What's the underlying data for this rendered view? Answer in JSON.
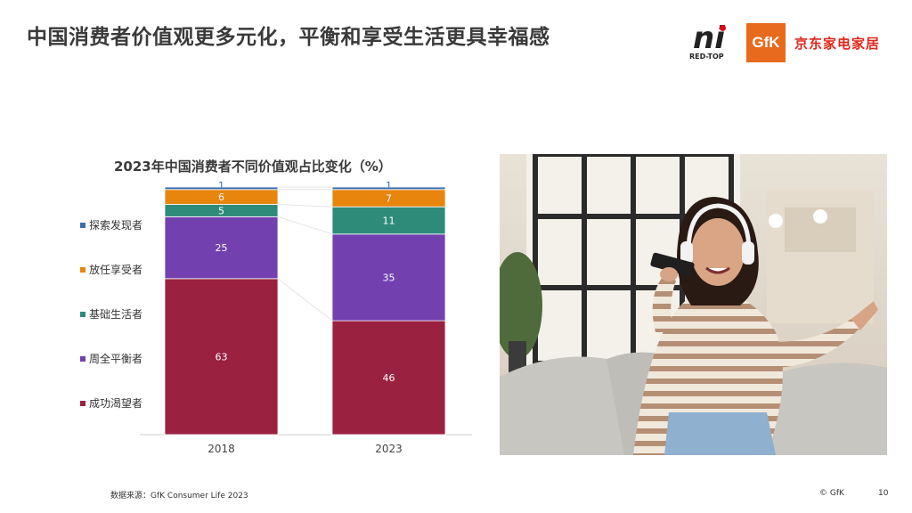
{
  "headline": "中国消费者价值观更多元化，平衡和享受生活更具幸福感",
  "logos": {
    "redtop_text": "RED-TOP",
    "gfk_text": "GfK",
    "jd_text": "京东家电家居"
  },
  "chart_data": {
    "type": "bar",
    "stacked": true,
    "title": "2023年中国消费者不同价值观占比变化（%）",
    "categories": [
      "2018",
      "2023"
    ],
    "series": [
      {
        "name": "成功渴望者",
        "values": [
          63,
          46
        ],
        "color": "#9b2141"
      },
      {
        "name": "周全平衡者",
        "values": [
          25,
          35
        ],
        "color": "#7340b0"
      },
      {
        "name": "基础生活者",
        "values": [
          5,
          11
        ],
        "color": "#2e8b7a"
      },
      {
        "name": "放任享受者",
        "values": [
          6,
          7
        ],
        "color": "#e8850d"
      },
      {
        "name": "探索发现者",
        "values": [
          1,
          1
        ],
        "color": "#3a6fb0"
      }
    ],
    "ylim": [
      0,
      100
    ],
    "legend_position": "left"
  },
  "source": "数据来源：GfK Consumer Life 2023",
  "copyright": "© GfK",
  "page_number": "10"
}
